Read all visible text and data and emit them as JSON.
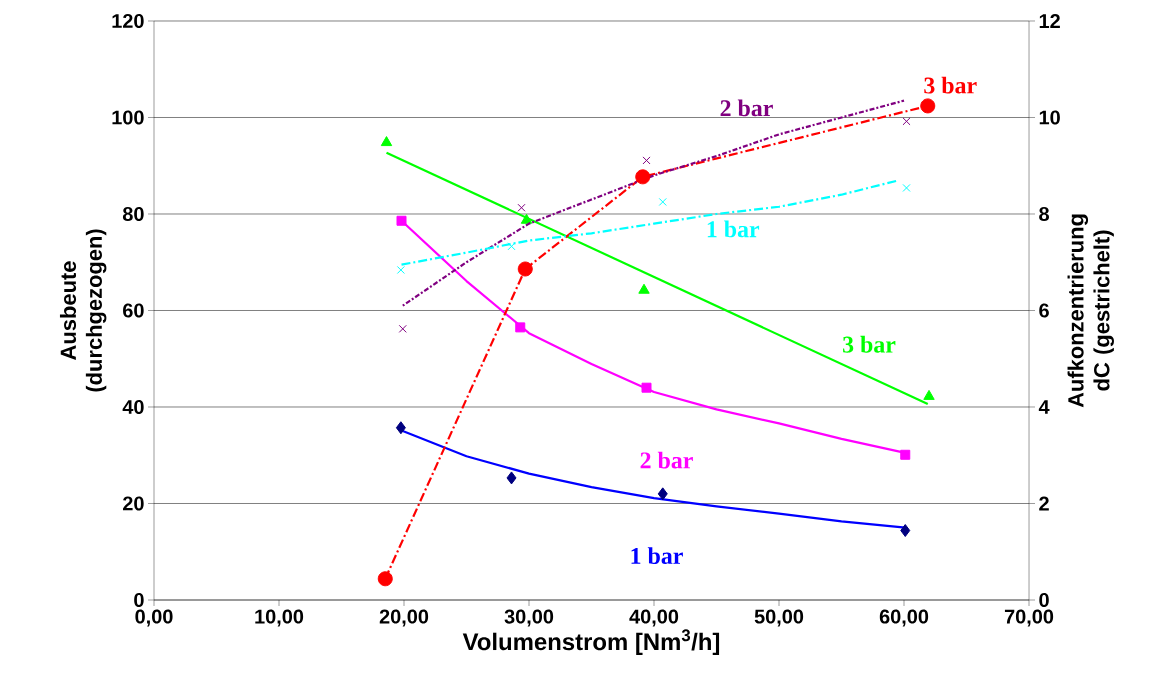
{
  "chart_data": {
    "type": "scatter",
    "xlabel": "Volumenstrom [Nm$^{3}$/h]",
    "ylabel": "Ausbeute (durchgezogen)",
    "y2label": "Aufkonzentrierung dC (gestrichelt)",
    "xlim": [
      0,
      70
    ],
    "xticks": [
      {
        "value": 0,
        "label": "0,00"
      },
      {
        "value": 10,
        "label": "10,00"
      },
      {
        "value": 20,
        "label": "20,00"
      },
      {
        "value": 30,
        "label": "30,00"
      },
      {
        "value": 40,
        "label": "40,00"
      },
      {
        "value": 50,
        "label": "50,00"
      },
      {
        "value": 60,
        "label": "60,00"
      },
      {
        "value": 70,
        "label": "70,00"
      }
    ],
    "ylim": [
      0,
      120
    ],
    "yticks": [
      0,
      20,
      40,
      60,
      80,
      100,
      120
    ],
    "y2lim": [
      0,
      12
    ],
    "y2ticks": [
      0,
      2,
      4,
      6,
      8,
      10,
      12
    ],
    "grid": "y",
    "series": [
      {
        "color": "#000080",
        "marker": "diamond",
        "x": [
          19.75,
          28.6,
          40.7,
          60.1
        ],
        "values": [
          35.7,
          25.3,
          22.0,
          14.4
        ]
      },
      {
        "type": "line",
        "name": "1 bar",
        "color": "#0000ff",
        "marker": "none",
        "line_style": "solid",
        "x": [
          19.75,
          25,
          30,
          35,
          40,
          45,
          50,
          55,
          60.1
        ],
        "values": [
          35.2,
          29.8,
          26.2,
          23.4,
          21.1,
          19.4,
          17.9,
          16.3,
          15.0
        ]
      },
      {
        "color": "#ff00ff",
        "marker": "square",
        "x": [
          19.8,
          29.3,
          39.4,
          60.1
        ],
        "values": [
          78.6,
          56.5,
          44.0,
          30.1
        ]
      },
      {
        "type": "line",
        "name": "2 bar",
        "color": "#ff00ff",
        "marker": "none",
        "line_style": "solid",
        "x": [
          19.8,
          25,
          30,
          35,
          40,
          45,
          50,
          55,
          60.1
        ],
        "values": [
          78.6,
          66.1,
          55.3,
          48.9,
          43.1,
          39.5,
          36.6,
          33.4,
          30.5
        ]
      },
      {
        "color": "#00ff00",
        "marker": "triangle",
        "x": [
          18.6,
          29.8,
          39.2,
          62.0
        ],
        "values": [
          94.8,
          78.7,
          64.2,
          42.2
        ]
      },
      {
        "type": "line",
        "name": "3 bar",
        "color": "#00ff00",
        "marker": "none",
        "line_style": "solid",
        "x": [
          18.6,
          61.9
        ],
        "values": [
          92.7,
          40.6
        ]
      },
      {
        "type": "line",
        "name": "3 bar",
        "color": "#ff0000",
        "marker": "circle",
        "line_style": "dashed",
        "axis": "y2",
        "x": [
          18.5,
          29.7,
          39.1,
          61.9
        ],
        "values": [
          0.44,
          6.86,
          8.77,
          10.24
        ]
      },
      {
        "color": "#800080",
        "marker": "cross",
        "axis": "y2",
        "x": [
          19.9,
          29.4,
          39.4,
          60.2
        ],
        "values": [
          5.62,
          8.13,
          9.11,
          9.92
        ]
      },
      {
        "type": "line",
        "name": "2 bar",
        "color": "#800080",
        "marker": "none",
        "line_style": "dotted",
        "axis": "y2",
        "x": [
          19.9,
          25,
          30,
          35,
          40,
          45,
          50,
          55,
          60
        ],
        "values": [
          6.1,
          7.0,
          7.8,
          8.3,
          8.8,
          9.2,
          9.65,
          10.0,
          10.35
        ]
      },
      {
        "color": "#00ffff",
        "marker": "cross",
        "axis": "y2",
        "x": [
          19.75,
          28.6,
          40.7,
          60.2
        ],
        "values": [
          6.84,
          7.33,
          8.25,
          8.54
        ]
      },
      {
        "type": "line",
        "name": "1 bar",
        "color": "#00ffff",
        "marker": "none",
        "line_style": "dashed",
        "axis": "y2",
        "x": [
          19.8,
          25,
          30,
          35,
          40,
          45,
          50,
          55,
          59.6
        ],
        "values": [
          6.95,
          7.2,
          7.45,
          7.6,
          7.8,
          8.0,
          8.15,
          8.4,
          8.7
        ]
      }
    ]
  }
}
